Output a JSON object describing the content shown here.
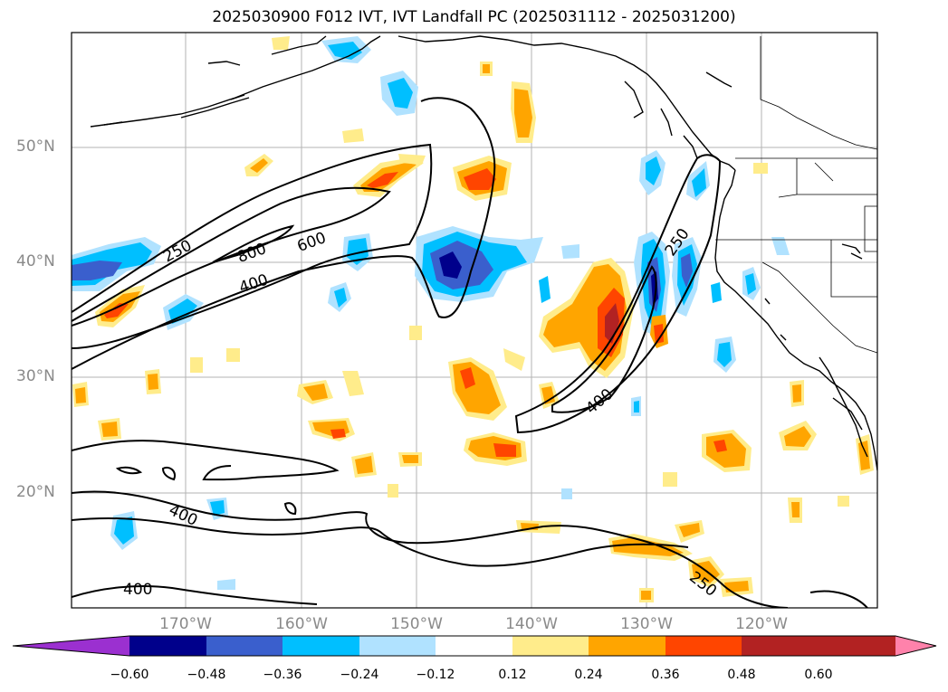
{
  "title": "2025030900 F012 IVT, IVT Landfall PC (2025031112 - 2025031200)",
  "latitude_labels": [
    "50°N",
    "40°N",
    "30°N",
    "20°N"
  ],
  "longitude_labels": [
    "170°W",
    "160°W",
    "150°W",
    "140°W",
    "130°W",
    "120°W"
  ],
  "contour_labels": [
    "250",
    "800",
    "600",
    "400",
    "250",
    "400",
    "400",
    "400",
    "250"
  ],
  "colorbar": {
    "ticks": [
      "−0.60",
      "−0.48",
      "−0.36",
      "−0.24",
      "−0.12",
      "0.12",
      "0.24",
      "0.36",
      "0.48",
      "0.60"
    ],
    "colors": [
      "#9b30d0",
      "#00008b",
      "#3a5fcd",
      "#00bfff",
      "#b0e2ff",
      "#ffffff",
      "#ffec8b",
      "#ffa500",
      "#ff4500",
      "#b22222",
      "#ff82ab"
    ]
  }
}
